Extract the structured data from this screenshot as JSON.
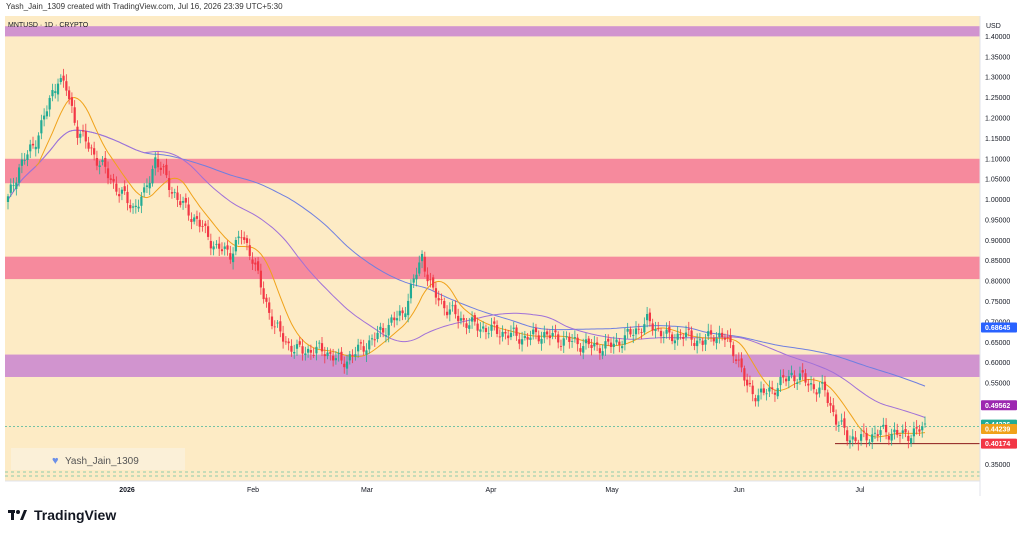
{
  "header_text": "Yash_Jain_1309 created with TradingView.com, Jul 16, 2026 23:39 UTC+5:30",
  "footer": {
    "brand": "TradingView"
  },
  "colors": {
    "background": "#fdebc5",
    "up": "#22ab94",
    "down": "#f23645",
    "zone_purple": "#cf8fd0",
    "zone_red": "#f6859b",
    "ema_fast": "#f0a21a",
    "ma_mid": "#a070d8",
    "ma_slow": "#6f7fe0"
  },
  "chart_data": {
    "type": "candlestick",
    "symbol_title": "MNTUSD · 1D · CRYPTO",
    "currency": "USD",
    "watermark": "Yash_Jain_1309",
    "ylim": [
      0.31,
      1.45
    ],
    "y_ticks": [
      "1.40000",
      "1.35000",
      "1.30000",
      "1.25000",
      "1.20000",
      "1.15000",
      "1.10000",
      "1.05000",
      "1.00000",
      "0.95000",
      "0.90000",
      "0.85000",
      "0.80000",
      "0.75000",
      "0.70000",
      "0.65000",
      "0.60000",
      "0.55000",
      "0.50000",
      "0.45000",
      "0.40000",
      "0.35000"
    ],
    "x_labels": [
      "2026",
      "Feb",
      "Mar",
      "Apr",
      "May",
      "Jun",
      "Jul"
    ],
    "price_labels": [
      {
        "text": "0.68645",
        "value": 0.68645,
        "color": "#2962ff"
      },
      {
        "text": "0.49562",
        "value": 0.49562,
        "color": "#9c27b0"
      },
      {
        "text": "0.44336",
        "value": 0.44336,
        "color": "#22ab94"
      },
      {
        "text": "0.44239",
        "value": 0.44239,
        "color": "#f0a21a"
      },
      {
        "text": "0.40174",
        "value": 0.40174,
        "color": "#f23645"
      }
    ],
    "zones": [
      {
        "from": 1.4,
        "to": 1.425,
        "color": "purple"
      },
      {
        "from": 1.04,
        "to": 1.1,
        "color": "red"
      },
      {
        "from": 0.805,
        "to": 0.86,
        "color": "red"
      },
      {
        "from": 0.565,
        "to": 0.62,
        "color": "purple"
      }
    ],
    "support_line": 0.40174,
    "last_price_line": 0.44336
  }
}
